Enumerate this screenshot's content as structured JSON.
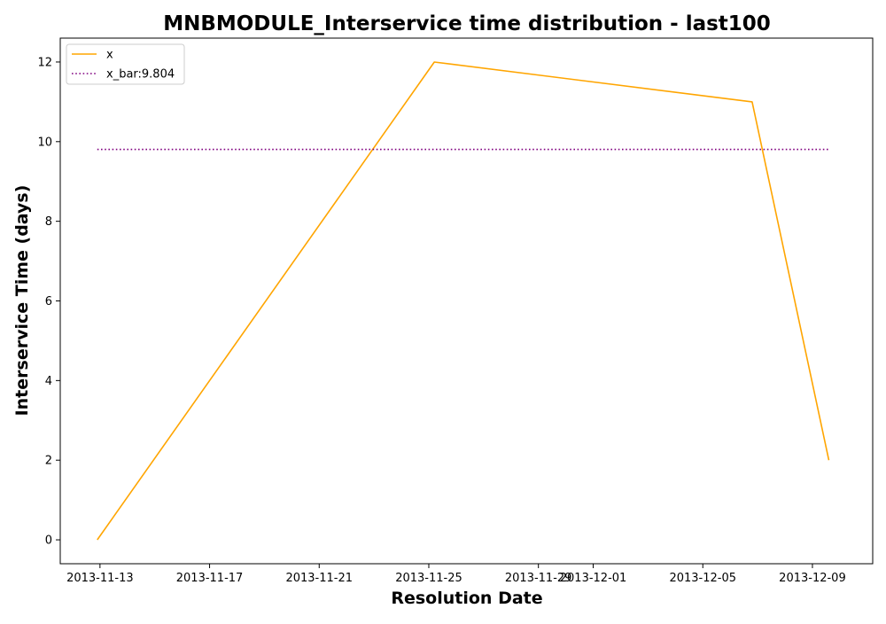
{
  "chart_data": {
    "type": "line",
    "title": "MNBMODULE_Interservice time distribution - last100",
    "xlabel": "Resolution Date",
    "ylabel": "Interservice Time (days)",
    "x_ticks": [
      "2013-11-13",
      "2013-11-17",
      "2013-11-21",
      "2013-11-25",
      "2013-11-29",
      "2013-12-01",
      "2013-12-05",
      "2013-12-09"
    ],
    "x_tick_days": [
      1,
      5,
      9,
      13,
      17,
      19,
      23,
      27
    ],
    "xlim_days": [
      -0.45,
      29.2
    ],
    "y_ticks": [
      0,
      2,
      4,
      6,
      8,
      10,
      12
    ],
    "ylim": [
      -0.6,
      12.6
    ],
    "legend_position": "upper-left",
    "series": [
      {
        "name": "x",
        "style": "solid",
        "color": "#FFA500",
        "points": [
          {
            "date": "2013-11-12 22:00",
            "day": 0.9,
            "y": 0
          },
          {
            "date": "2013-11-25 05:00",
            "day": 13.2,
            "y": 12
          },
          {
            "date": "2013-12-06 19:00",
            "day": 24.8,
            "y": 11
          },
          {
            "date": "2013-12-09 14:00",
            "day": 27.6,
            "y": 2
          }
        ]
      },
      {
        "name": "x_bar:9.804",
        "style": "dotted",
        "color": "#800080",
        "points": [
          {
            "date": "2013-11-12 22:00",
            "day": 0.9,
            "y": 9.804
          },
          {
            "date": "2013-12-09 14:00",
            "day": 27.6,
            "y": 9.804
          }
        ]
      }
    ]
  }
}
